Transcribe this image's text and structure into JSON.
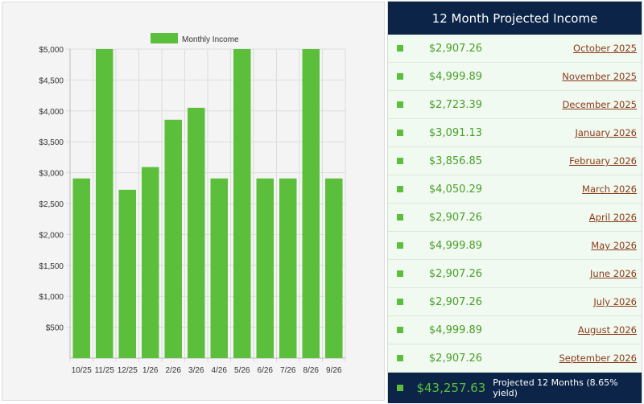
{
  "chart_data": {
    "type": "bar",
    "legend": "Monthly Income",
    "legend_position": "top",
    "categories": [
      "10/25",
      "11/25",
      "12/25",
      "1/26",
      "2/26",
      "3/26",
      "4/26",
      "5/26",
      "6/26",
      "7/26",
      "8/26",
      "9/26"
    ],
    "values": [
      2907.26,
      4999.89,
      2723.39,
      3091.13,
      3856.85,
      4050.29,
      2907.26,
      4999.89,
      2907.26,
      2907.26,
      4999.89,
      2907.26
    ],
    "ylim": [
      0,
      5000
    ],
    "yticks": [
      "$500",
      "$1,000",
      "$1,500",
      "$2,000",
      "$2,500",
      "$3,000",
      "$3,500",
      "$4,000",
      "$4,500",
      "$5,000"
    ],
    "bar_color": "#5cbf3c",
    "grid": true
  },
  "panel": {
    "title": "12 Month Projected Income",
    "rows": [
      {
        "amount": "$2,907.26",
        "month": "October 2025"
      },
      {
        "amount": "$4,999.89",
        "month": "November 2025"
      },
      {
        "amount": "$2,723.39",
        "month": "December 2025"
      },
      {
        "amount": "$3,091.13",
        "month": "January 2026"
      },
      {
        "amount": "$3,856.85",
        "month": "February 2026"
      },
      {
        "amount": "$4,050.29",
        "month": "March 2026"
      },
      {
        "amount": "$2,907.26",
        "month": "April 2026"
      },
      {
        "amount": "$4,999.89",
        "month": "May 2026"
      },
      {
        "amount": "$2,907.26",
        "month": "June 2026"
      },
      {
        "amount": "$2,907.26",
        "month": "July 2026"
      },
      {
        "amount": "$4,999.89",
        "month": "August 2026"
      },
      {
        "amount": "$2,907.26",
        "month": "September 2026"
      }
    ],
    "total": "$43,257.63",
    "total_label": "Projected 12 Months (8.65% yield)"
  }
}
